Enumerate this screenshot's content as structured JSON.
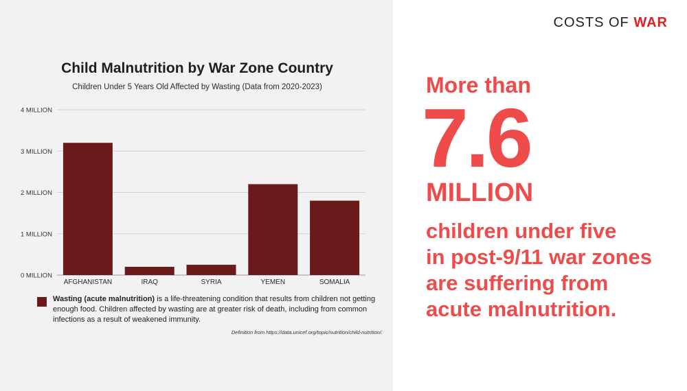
{
  "brand": {
    "text": "COSTS OF ",
    "accent": "WAR",
    "accent_color": "#e31e24"
  },
  "stat": {
    "prefix": "More than",
    "number": "7.6",
    "unit": "MILLION",
    "description_lines": [
      "children under five",
      "in post-9/11 war zones",
      "are suffering from",
      "acute malnutrition."
    ],
    "color": "#ef4b4b"
  },
  "legend": {
    "term": "Wasting (acute malnutrition)",
    "description": " is a life-threatening condition that results from children not getting enough food. Children affected by wasting are at greater risk of death, including from common infections as a result of weakened immunity.",
    "color": "#6b1a1c"
  },
  "source_note": "Definition from https://data.unicef.org/topic/nutrition/child-nutrition/.",
  "chart_data": {
    "type": "bar",
    "title": "Child Malnutrition by War Zone Country",
    "subtitle": "Children Under 5 Years Old Affected by Wasting (Data from 2020-2023)",
    "categories": [
      "AFGHANISTAN",
      "IRAQ",
      "SYRIA",
      "YEMEN",
      "SOMALIA"
    ],
    "values": [
      3.2,
      0.2,
      0.25,
      2.2,
      1.8
    ],
    "unit": "MILLION",
    "ylim": [
      0,
      4
    ],
    "yticks": [
      0,
      1,
      2,
      3,
      4
    ],
    "ytick_labels": [
      "0 MILLION",
      "1 MILLION",
      "2 MILLION",
      "3 MILLION",
      "4 MILLION"
    ],
    "bar_color": "#6b1a1c",
    "grid": true,
    "legend_position": "bottom-left"
  }
}
